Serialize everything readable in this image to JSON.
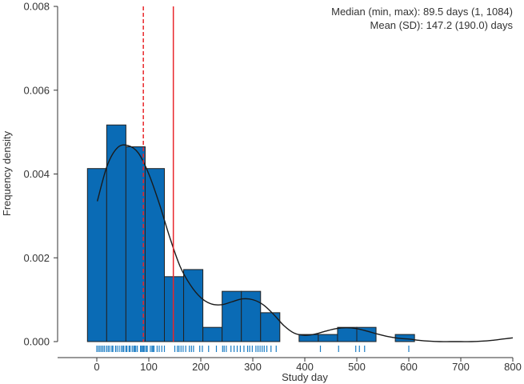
{
  "chart_data": {
    "type": "bar",
    "subtype": "histogram-with-density",
    "title": "",
    "xlabel": "Study day",
    "ylabel": "Frequency density",
    "xlim": [
      -75,
      800
    ],
    "ylim": [
      0,
      0.008
    ],
    "xticks": [
      0,
      100,
      200,
      300,
      400,
      500,
      600,
      700,
      800
    ],
    "yticks": [
      0.0,
      0.002,
      0.004,
      0.006,
      0.008
    ],
    "ytick_labels": [
      "0.000",
      "0.002",
      "0.004",
      "0.006",
      "0.008"
    ],
    "bins": [
      {
        "x0": -18,
        "x1": 19,
        "density": 0.00413
      },
      {
        "x0": 19,
        "x1": 56,
        "density": 0.00517
      },
      {
        "x0": 56,
        "x1": 93,
        "density": 0.00465
      },
      {
        "x0": 93,
        "x1": 130,
        "density": 0.00413
      },
      {
        "x0": 130,
        "x1": 167,
        "density": 0.00155
      },
      {
        "x0": 167,
        "x1": 204,
        "density": 0.00172
      },
      {
        "x0": 204,
        "x1": 241,
        "density": 0.00034
      },
      {
        "x0": 241,
        "x1": 278,
        "density": 0.0012
      },
      {
        "x0": 278,
        "x1": 315,
        "density": 0.0012
      },
      {
        "x0": 315,
        "x1": 352,
        "density": 0.00069
      },
      {
        "x0": 352,
        "x1": 389,
        "density": 0.0
      },
      {
        "x0": 389,
        "x1": 426,
        "density": 0.00017
      },
      {
        "x0": 426,
        "x1": 463,
        "density": 0.00017
      },
      {
        "x0": 463,
        "x1": 500,
        "density": 0.00034
      },
      {
        "x0": 500,
        "x1": 537,
        "density": 0.00034
      },
      {
        "x0": 537,
        "x1": 574,
        "density": 0.0
      },
      {
        "x0": 574,
        "x1": 611,
        "density": 0.00017
      }
    ],
    "density_curve": {
      "x": [
        1,
        20,
        40,
        60,
        80,
        100,
        120,
        140,
        160,
        180,
        200,
        220,
        240,
        260,
        280,
        300,
        320,
        340,
        360,
        380,
        400,
        420,
        440,
        460,
        480,
        500,
        520,
        540,
        560,
        580,
        600,
        620,
        640,
        660,
        680,
        700,
        720,
        740,
        760,
        780,
        800
      ],
      "y": [
        0.00335,
        0.0042,
        0.00463,
        0.00468,
        0.0045,
        0.004,
        0.0033,
        0.0025,
        0.0018,
        0.00135,
        0.00105,
        0.0009,
        0.00088,
        0.00095,
        0.00102,
        0.001,
        0.00088,
        0.00065,
        0.00038,
        0.0002,
        0.00015,
        0.00018,
        0.00025,
        0.00031,
        0.00033,
        0.00031,
        0.00025,
        0.00018,
        0.00012,
        8e-05,
        6e-05,
        3e-05,
        1e-05,
        0.0,
        0.0,
        0.0,
        0.0,
        1e-05,
        3e-05,
        6e-05,
        9e-05
      ]
    },
    "vertical_lines": [
      {
        "x": 89.5,
        "style": "dashed",
        "color": "#e8262b"
      },
      {
        "x": 147.2,
        "style": "solid",
        "color": "#e8262b"
      }
    ],
    "rug": [
      0,
      3,
      6,
      9,
      12,
      15,
      19,
      22,
      25,
      29,
      31,
      36,
      39,
      43,
      47,
      50,
      52,
      56,
      58,
      62,
      64,
      68,
      71,
      73,
      75,
      78,
      84,
      86,
      88,
      90,
      92,
      95,
      97,
      103,
      106,
      108,
      110,
      116,
      120,
      125,
      130,
      150,
      155,
      158,
      162,
      166,
      171,
      178,
      182,
      186,
      198,
      203,
      215,
      230,
      242,
      245,
      249,
      258,
      264,
      270,
      276,
      283,
      290,
      294,
      299,
      306,
      310,
      314,
      318,
      322,
      327,
      335,
      345,
      430,
      465,
      498,
      505,
      515,
      600
    ],
    "bar_color": "#0a6bb5",
    "rug_color": "#1a7cc4",
    "curve_color": "#1a1a1a",
    "annotations": [
      "Median (min, max): 89.5 days (1, 1084)",
      "Mean (SD): 147.2 (190.0) days"
    ]
  }
}
